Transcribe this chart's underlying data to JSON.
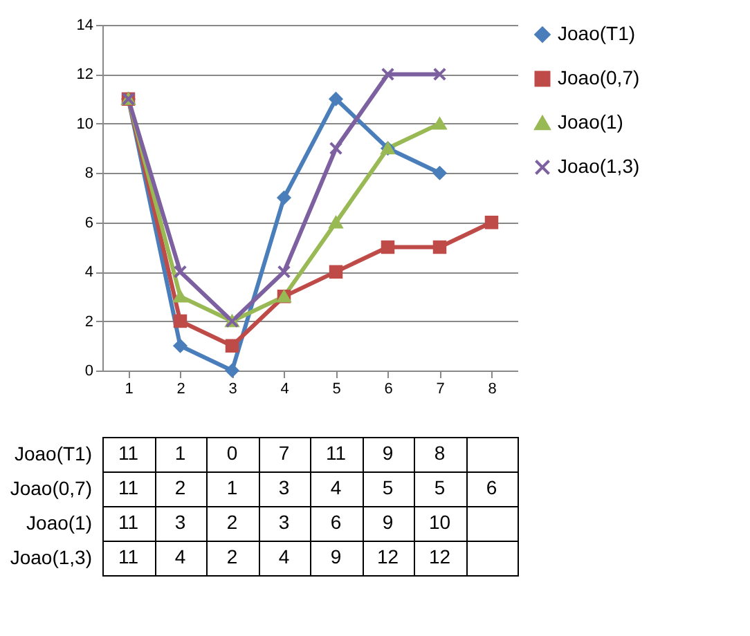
{
  "chart_data": {
    "type": "line",
    "categories": [
      "1",
      "2",
      "3",
      "4",
      "5",
      "6",
      "7",
      "8"
    ],
    "ylim": [
      0,
      14
    ],
    "yticks": [
      0,
      2,
      4,
      6,
      8,
      10,
      12,
      14
    ],
    "grid": "y",
    "legend": "right",
    "data_labels": true,
    "line_style": "solid",
    "series": [
      {
        "name": "Joao(T1)",
        "color": "#4a7ebb",
        "marker": "diamond",
        "values": [
          11,
          1,
          0,
          7,
          11,
          9,
          8,
          null
        ]
      },
      {
        "name": "Joao(0,7)",
        "color": "#be4b48",
        "marker": "square",
        "values": [
          11,
          2,
          1,
          3,
          4,
          5,
          5,
          6
        ]
      },
      {
        "name": "Joao(1)",
        "color": "#98b954",
        "marker": "triangle",
        "values": [
          11,
          3,
          2,
          3,
          6,
          9,
          10,
          null
        ]
      },
      {
        "name": "Joao(1,3)",
        "color": "#7d60a0",
        "marker": "cross",
        "values": [
          11,
          4,
          2,
          4,
          9,
          12,
          12,
          null
        ]
      }
    ]
  }
}
